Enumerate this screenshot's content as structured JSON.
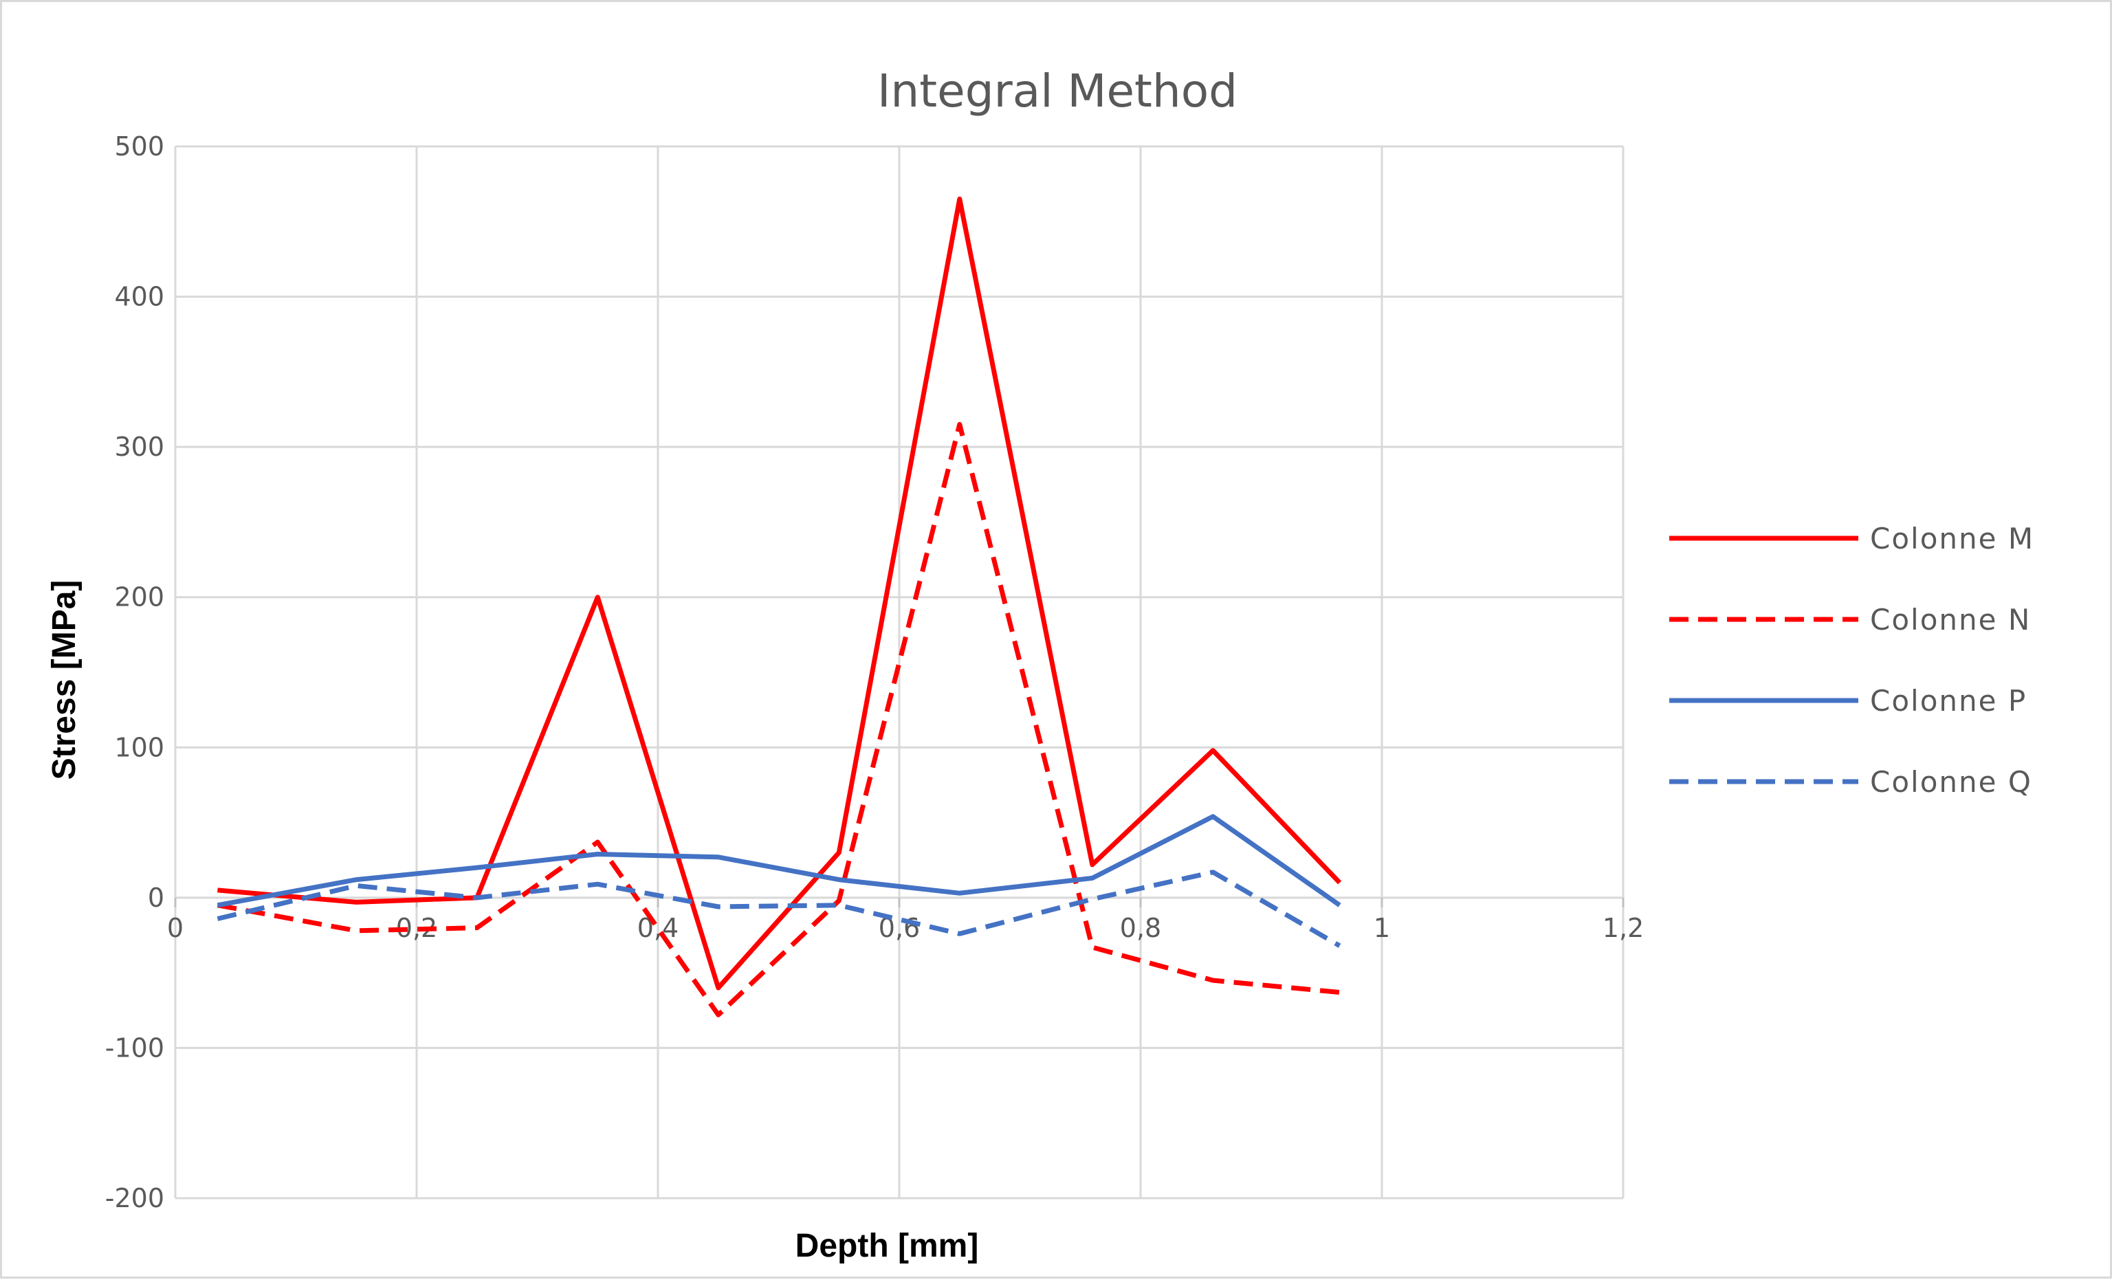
{
  "chart_data": {
    "type": "line",
    "title": "Integral Method",
    "xlabel": "Depth [mm]",
    "ylabel": "Stress [MPa]",
    "xlim": [
      0,
      1.2
    ],
    "ylim": [
      -200,
      500
    ],
    "xticks": [
      0,
      0.2,
      0.4,
      0.6,
      0.8,
      1,
      1.2
    ],
    "xtick_labels": [
      "0",
      "0,2",
      "0,4",
      "0,6",
      "0,8",
      "1",
      "1,2"
    ],
    "yticks": [
      -200,
      -100,
      0,
      100,
      200,
      300,
      400,
      500
    ],
    "ytick_labels": [
      "-200",
      "-100",
      "0",
      "100",
      "200",
      "300",
      "400",
      "500"
    ],
    "grid": true,
    "legend_position": "right",
    "series": [
      {
        "name": "Colonne M",
        "color": "#ff0000",
        "style": "solid",
        "x": [
          0.035,
          0.15,
          0.25,
          0.35,
          0.45,
          0.55,
          0.65,
          0.76,
          0.86,
          0.965
        ],
        "y": [
          5,
          -3,
          0,
          200,
          -60,
          30,
          465,
          22,
          98,
          10
        ]
      },
      {
        "name": "Colonne N",
        "color": "#ff0000",
        "style": "dashed",
        "x": [
          0.035,
          0.15,
          0.25,
          0.35,
          0.45,
          0.55,
          0.65,
          0.76,
          0.86,
          0.965
        ],
        "y": [
          -5,
          -22,
          -20,
          37,
          -78,
          -2,
          315,
          -33,
          -55,
          -63
        ]
      },
      {
        "name": "Colonne P",
        "color": "#4472c4",
        "style": "solid",
        "x": [
          0.035,
          0.15,
          0.25,
          0.35,
          0.45,
          0.55,
          0.65,
          0.76,
          0.86,
          0.965
        ],
        "y": [
          -5,
          12,
          20,
          29,
          27,
          12,
          3,
          13,
          54,
          -5
        ]
      },
      {
        "name": "Colonne Q",
        "color": "#4472c4",
        "style": "dashed",
        "x": [
          0.035,
          0.15,
          0.25,
          0.35,
          0.45,
          0.55,
          0.65,
          0.76,
          0.86,
          0.965
        ],
        "y": [
          -14,
          8,
          0,
          9,
          -6,
          -5,
          -24,
          -1,
          17,
          -32
        ]
      }
    ]
  }
}
